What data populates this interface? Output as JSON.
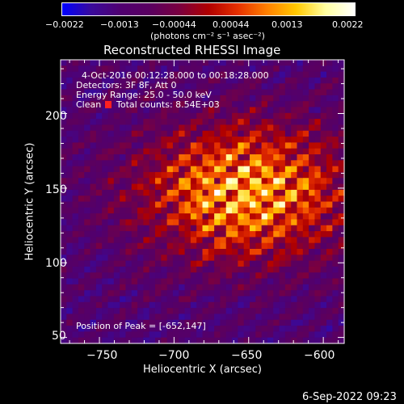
{
  "colorbar": {
    "ticks": [
      "−0.0022",
      "−0.0013",
      "−0.00044",
      "0.00044",
      "0.0013",
      "0.0022"
    ],
    "units": "(photons cm⁻² s⁻¹ asec⁻²)",
    "stops": [
      "#0000ff",
      "#3a0a9a",
      "#500070",
      "#5a0060",
      "#7a0040",
      "#b00000",
      "#e63000",
      "#ff8000",
      "#ffc800",
      "#ffffa0",
      "#ffffff"
    ]
  },
  "chart_data": {
    "type": "heatmap",
    "title": "Reconstructed RHESSI Image",
    "xlabel": "Heliocentric X (arcsec)",
    "ylabel": "Heliocentric Y (arcsec)",
    "xlim": [
      -776,
      -586
    ],
    "ylim": [
      46,
      236
    ],
    "xticks": [
      -750,
      -700,
      -650,
      -600
    ],
    "xtick_labels": [
      "−750",
      "−700",
      "−650",
      "−600"
    ],
    "yticks": [
      50,
      100,
      150,
      200
    ],
    "ytick_labels": [
      "50",
      "100",
      "150",
      "200"
    ],
    "clim": [
      -0.0022,
      0.0022
    ],
    "peak": [
      -652,
      147
    ],
    "annotations": {
      "time_range": "4-Oct-2016 00:12:28.000 to 00:18:28.000",
      "detectors": "Detectors: 3F 8F, Att 0",
      "energy_range": "Energy Range: 25.0 - 50.0 keV",
      "clean_label": "Clean",
      "total_counts": "Total counts: 8.54E+03",
      "peak_position": "Position of Peak = [-652,147]"
    }
  },
  "footer": {
    "date": "6-Sep-2022 09:23"
  }
}
